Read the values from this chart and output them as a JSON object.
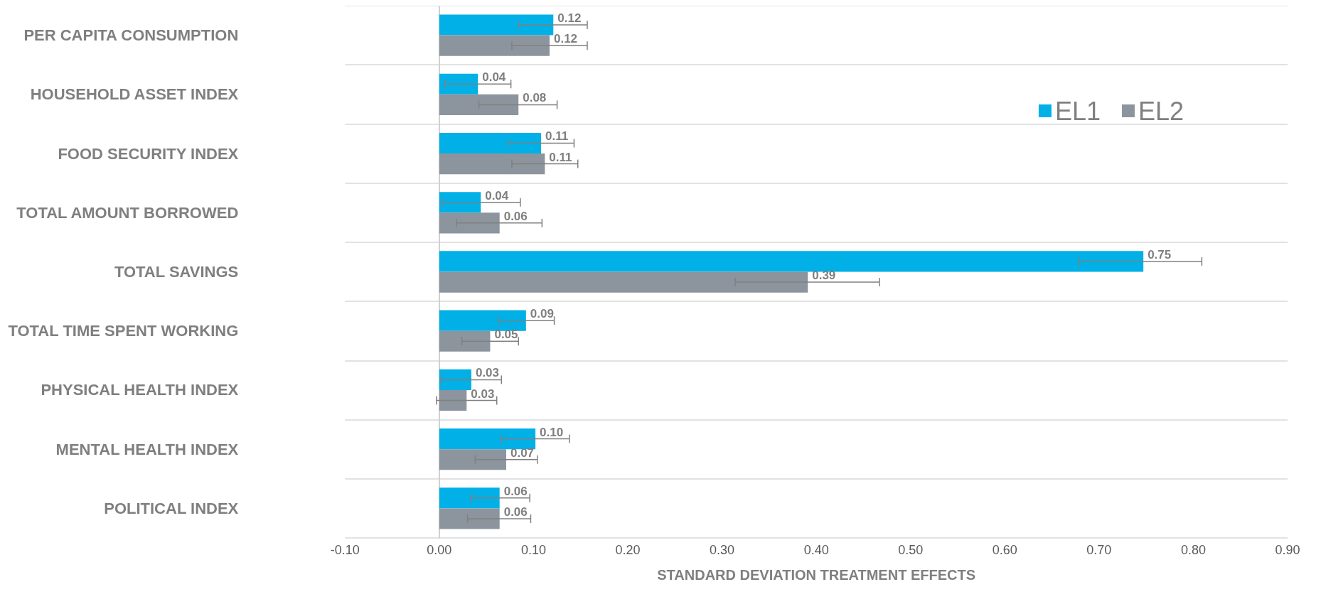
{
  "chart_data": {
    "type": "bar",
    "orientation": "horizontal",
    "xlabel": "STANDARD DEVIATION TREATMENT EFFECTS",
    "categories": [
      "PER CAPITA CONSUMPTION",
      "HOUSEHOLD ASSET INDEX",
      "FOOD SECURITY INDEX",
      "TOTAL AMOUNT BORROWED",
      "TOTAL SAVINGS",
      "TOTAL TIME SPENT WORKING",
      "PHYSICAL HEALTH INDEX",
      "MENTAL HEALTH INDEX",
      "POLITICAL INDEX"
    ],
    "series": [
      {
        "name": "EL1",
        "color": "#00b0e6",
        "values": [
          0.121,
          0.041,
          0.108,
          0.044,
          0.747,
          0.092,
          0.034,
          0.102,
          0.064
        ],
        "value_labels": [
          "0.12",
          "0.04",
          "0.11",
          "0.04",
          "0.75",
          "0.09",
          "0.03",
          "0.10",
          "0.06"
        ],
        "errors": [
          [
            0.084,
            0.157
          ],
          [
            0.006,
            0.076
          ],
          [
            0.073,
            0.143
          ],
          [
            0.003,
            0.086
          ],
          [
            0.679,
            0.809
          ],
          [
            0.063,
            0.122
          ],
          [
            0.002,
            0.066
          ],
          [
            0.066,
            0.138
          ],
          [
            0.033,
            0.096
          ]
        ]
      },
      {
        "name": "EL2",
        "color": "#8c959d",
        "values": [
          0.117,
          0.084,
          0.112,
          0.064,
          0.391,
          0.054,
          0.029,
          0.071,
          0.064
        ],
        "value_labels": [
          "0.12",
          "0.08",
          "0.11",
          "0.06",
          "0.39",
          "0.05",
          "0.03",
          "0.07",
          "0.06"
        ],
        "errors": [
          [
            0.077,
            0.157
          ],
          [
            0.042,
            0.125
          ],
          [
            0.077,
            0.147
          ],
          [
            0.018,
            0.109
          ],
          [
            0.314,
            0.467
          ],
          [
            0.024,
            0.084
          ],
          [
            -0.003,
            0.061
          ],
          [
            0.038,
            0.104
          ],
          [
            0.03,
            0.097
          ]
        ]
      }
    ],
    "xlim": [
      -0.1,
      0.9
    ],
    "xticks": [
      {
        "value": -0.1,
        "label": "-0.10"
      },
      {
        "value": 0,
        "label": "0.00"
      },
      {
        "value": 0.1,
        "label": "0.10"
      },
      {
        "value": 0.2,
        "label": "0.20"
      },
      {
        "value": 0.3,
        "label": "0.30"
      },
      {
        "value": 0.4,
        "label": "0.40"
      },
      {
        "value": 0.5,
        "label": "0.50"
      },
      {
        "value": 0.6,
        "label": "0.60"
      },
      {
        "value": 0.7,
        "label": "0.70"
      },
      {
        "value": 0.8,
        "label": "0.80"
      },
      {
        "value": 0.9,
        "label": "0.90"
      }
    ],
    "grid": "y",
    "legend": "top right"
  }
}
